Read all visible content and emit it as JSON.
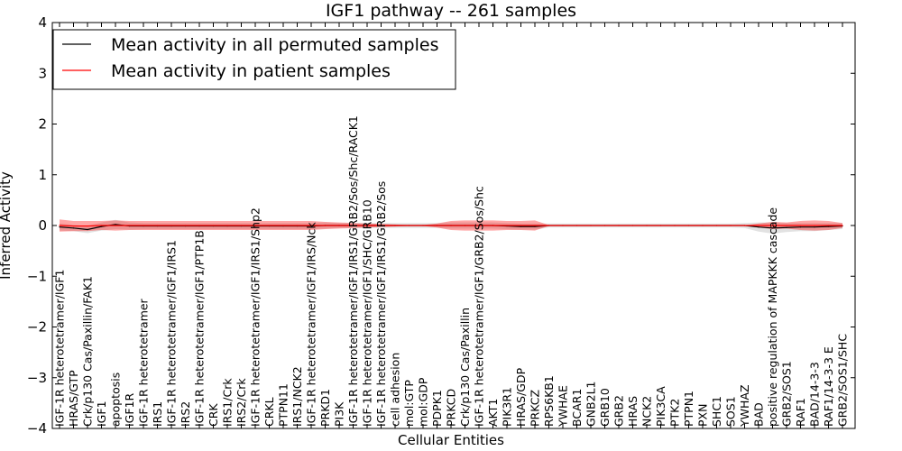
{
  "chart_data": {
    "type": "line",
    "title": "IGF1 pathway -- 261 samples",
    "xlabel": "Cellular Entities",
    "ylabel": "Inferred Activity",
    "ylim": [
      -4,
      4
    ],
    "yticks": [
      "−4",
      "−3",
      "−2",
      "−1",
      "0",
      "1",
      "2",
      "3",
      "4"
    ],
    "legend_position": "top-left",
    "categories": [
      "IGF-1R heterotetramer/IGF1",
      "HRAS/GTP",
      "Crk/p130 Cas/Paxillin/FAK1",
      "IGF1",
      "apoptosis",
      "IGF1R",
      "IGF-1R heterotetramer",
      "IRS1",
      "IGF-1R heterotetramer/IGF1/IRS1",
      "IRS2",
      "IGF-1R heterotetramer/IGF1/PTP1B",
      "CRK",
      "IRS1/Crk",
      "IRS2/Crk",
      "IGF-1R heterotetramer/IGF1/IRS1/Shp2",
      "CRKL",
      "PTPN11",
      "IRS1/NCK2",
      "IGF-1R heterotetramer/IGF1/IRS/Nck",
      "PRKD1",
      "PI3K",
      "IGF-1R heterotetramer/IGF1/IRS1/GRB2/Sos/Shc/RACK1",
      "IGF-1R heterotetramer/IGF1/SHC/GRB10",
      "IGF-1R heterotetramer/IGF1/IRS1/GRB2/Sos",
      "cell adhesion",
      "mol:GTP",
      "mol:GDP",
      "PDPK1",
      "PRKCD",
      "Crk/p130 Cas/Paxillin",
      "IGF-1R heterotetramer/IGF1/GRB2/Sos/Shc",
      "AKT1",
      "PIK3R1",
      "HRAS/GDP",
      "PRKCZ",
      "RPS6KB1",
      "YWHAE",
      "BCAR1",
      "GNB2L1",
      "GRB10",
      "GRB2",
      "HRAS",
      "NCK2",
      "PIK3CA",
      "PTK2",
      "PTPN1",
      "PXN",
      "SHC1",
      "SOS1",
      "YWHAZ",
      "BAD",
      "positive regulation of MAPKKK cascade",
      "GRB2/SOS1",
      "RAF1",
      "BAD/14-3-3",
      "RAF1/14-3-3 E",
      "GRB2/SOS1/SHC"
    ],
    "series": [
      {
        "name": "Mean activity in all permuted samples",
        "color": "#000000",
        "values": [
          -0.03,
          -0.05,
          -0.08,
          -0.02,
          0.02,
          -0.01,
          -0.01,
          -0.01,
          -0.01,
          -0.01,
          -0.01,
          -0.01,
          -0.01,
          -0.01,
          -0.01,
          -0.01,
          -0.01,
          -0.01,
          -0.01,
          0.0,
          0.0,
          0.0,
          0.0,
          0.0,
          0.0,
          0.0,
          0.0,
          0.0,
          0.0,
          0.0,
          0.0,
          0.0,
          -0.01,
          -0.02,
          -0.02,
          0.0,
          0.0,
          0.0,
          0.0,
          0.0,
          0.0,
          0.0,
          0.0,
          0.0,
          0.0,
          0.0,
          0.0,
          0.0,
          0.0,
          0.0,
          -0.03,
          -0.05,
          -0.04,
          -0.03,
          -0.03,
          -0.02,
          -0.01
        ],
        "band": [
          0.07,
          0.06,
          0.07,
          0.08,
          0.09,
          0.07,
          0.06,
          0.06,
          0.06,
          0.06,
          0.06,
          0.06,
          0.06,
          0.06,
          0.06,
          0.06,
          0.06,
          0.06,
          0.06,
          0.06,
          0.05,
          0.05,
          0.05,
          0.05,
          0.05,
          0.05,
          0.05,
          0.05,
          0.06,
          0.06,
          0.06,
          0.06,
          0.06,
          0.06,
          0.06,
          0.04,
          0.04,
          0.04,
          0.04,
          0.04,
          0.04,
          0.04,
          0.04,
          0.04,
          0.04,
          0.04,
          0.04,
          0.04,
          0.04,
          0.05,
          0.09,
          0.11,
          0.09,
          0.08,
          0.08,
          0.07,
          0.06
        ]
      },
      {
        "name": "Mean activity in patient samples",
        "color": "#ff0000",
        "values": [
          0.0,
          -0.01,
          -0.01,
          0.0,
          0.0,
          0.0,
          0.0,
          0.0,
          0.0,
          0.0,
          0.0,
          0.0,
          0.0,
          0.0,
          0.0,
          0.0,
          0.0,
          0.0,
          0.0,
          0.0,
          0.0,
          0.0,
          0.0,
          0.0,
          0.0,
          0.0,
          0.0,
          0.0,
          0.0,
          0.0,
          0.0,
          0.0,
          0.0,
          0.0,
          0.0,
          0.0,
          0.0,
          0.0,
          0.0,
          0.0,
          0.0,
          0.0,
          0.0,
          0.0,
          0.0,
          0.0,
          0.0,
          0.0,
          0.0,
          0.0,
          0.0,
          0.0,
          0.0,
          0.0,
          0.0,
          0.0,
          0.0
        ],
        "band": [
          0.12,
          0.1,
          0.1,
          0.09,
          0.1,
          0.09,
          0.09,
          0.09,
          0.09,
          0.09,
          0.09,
          0.09,
          0.09,
          0.09,
          0.09,
          0.09,
          0.09,
          0.09,
          0.09,
          0.07,
          0.06,
          0.05,
          0.04,
          0.03,
          0.02,
          0.01,
          0.01,
          0.04,
          0.09,
          0.1,
          0.1,
          0.1,
          0.09,
          0.09,
          0.1,
          0.01,
          0.0,
          0.0,
          0.0,
          0.0,
          0.0,
          0.0,
          0.0,
          0.0,
          0.0,
          0.0,
          0.0,
          0.0,
          0.0,
          0.0,
          0.04,
          0.07,
          0.06,
          0.09,
          0.1,
          0.09,
          0.05
        ]
      }
    ]
  }
}
